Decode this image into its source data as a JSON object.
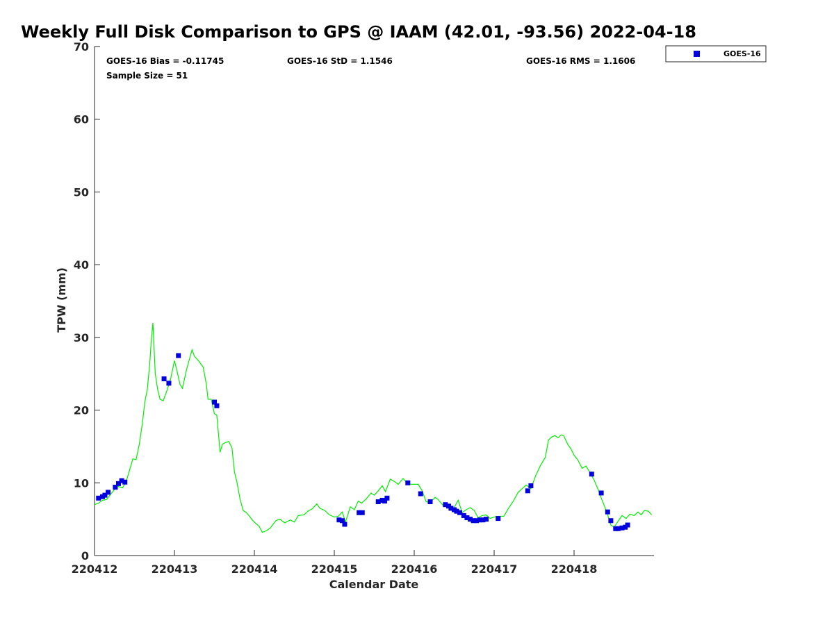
{
  "chart_data": {
    "type": "scatter",
    "title": "Weekly Full Disk Comparison to GPS @ IAAM (42.01, -93.56) 2022-04-18",
    "xlabel": "Calendar Date",
    "ylabel": "TPW (mm)",
    "xlim": [
      220412,
      220419
    ],
    "ylim": [
      0,
      70
    ],
    "yticks": [
      0,
      10,
      20,
      30,
      40,
      50,
      60,
      70
    ],
    "xticks": [
      {
        "value": 220412,
        "label": "220412"
      },
      {
        "value": 220413,
        "label": "220413"
      },
      {
        "value": 220414,
        "label": "220414"
      },
      {
        "value": 220415,
        "label": "220415"
      },
      {
        "value": 220416,
        "label": "220416"
      },
      {
        "value": 220417,
        "label": "220417"
      },
      {
        "value": 220418,
        "label": "220418"
      }
    ],
    "grid": false,
    "legend": {
      "placement": "outside-top-right",
      "entries": [
        "GOES-16"
      ]
    },
    "stats": {
      "bias": "GOES-16 Bias = -0.11745",
      "std": "GOES-16 StD = 1.1546",
      "rms": "GOES-16 RMS = 1.1606",
      "sample_size": "Sample Size = 51"
    },
    "colors": {
      "goes16": "#0000dd",
      "gps": "#00ee00"
    },
    "series": [
      {
        "name": "GOES-16",
        "marker": "square",
        "points": [
          [
            220412.05,
            7.9
          ],
          [
            220412.1,
            8.1
          ],
          [
            220412.13,
            8.3
          ],
          [
            220412.17,
            8.7
          ],
          [
            220412.26,
            9.4
          ],
          [
            220412.3,
            9.9
          ],
          [
            220412.34,
            10.3
          ],
          [
            220412.38,
            10.1
          ],
          [
            220412.87,
            24.3
          ],
          [
            220412.93,
            23.7
          ],
          [
            220413.05,
            27.5
          ],
          [
            220413.5,
            21.1
          ],
          [
            220413.53,
            20.6
          ],
          [
            220415.06,
            4.9
          ],
          [
            220415.1,
            4.8
          ],
          [
            220415.13,
            4.3
          ],
          [
            220415.31,
            5.9
          ],
          [
            220415.35,
            5.9
          ],
          [
            220415.55,
            7.4
          ],
          [
            220415.6,
            7.6
          ],
          [
            220415.63,
            7.5
          ],
          [
            220415.66,
            7.9
          ],
          [
            220415.92,
            10.0
          ],
          [
            220416.08,
            8.5
          ],
          [
            220416.2,
            7.4
          ],
          [
            220416.39,
            7.0
          ],
          [
            220416.43,
            6.8
          ],
          [
            220416.46,
            6.5
          ],
          [
            220416.5,
            6.3
          ],
          [
            220416.53,
            6.1
          ],
          [
            220416.57,
            5.9
          ],
          [
            220416.62,
            5.5
          ],
          [
            220416.66,
            5.2
          ],
          [
            220416.7,
            5.0
          ],
          [
            220416.74,
            4.8
          ],
          [
            220416.78,
            4.8
          ],
          [
            220416.82,
            4.9
          ],
          [
            220416.86,
            4.9
          ],
          [
            220416.9,
            5.0
          ],
          [
            220417.05,
            5.1
          ],
          [
            220417.42,
            8.9
          ],
          [
            220417.46,
            9.6
          ],
          [
            220418.22,
            11.2
          ],
          [
            220418.34,
            8.6
          ],
          [
            220418.42,
            6.0
          ],
          [
            220418.46,
            4.8
          ],
          [
            220418.52,
            3.7
          ],
          [
            220418.55,
            3.7
          ],
          [
            220418.6,
            3.8
          ],
          [
            220418.64,
            3.9
          ],
          [
            220418.67,
            4.2
          ]
        ]
      },
      {
        "marker": "line",
        "points": [
          [
            220412.0,
            7.0
          ],
          [
            220412.05,
            7.2
          ],
          [
            220412.1,
            7.6
          ],
          [
            220412.15,
            7.7
          ],
          [
            220412.2,
            8.4
          ],
          [
            220412.25,
            9.1
          ],
          [
            220412.3,
            9.5
          ],
          [
            220412.35,
            9.3
          ],
          [
            220412.4,
            10.3
          ],
          [
            220412.45,
            12.2
          ],
          [
            220412.48,
            13.3
          ],
          [
            220412.52,
            13.2
          ],
          [
            220412.56,
            15.3
          ],
          [
            220412.6,
            18.3
          ],
          [
            220412.63,
            21.2
          ],
          [
            220412.66,
            22.8
          ],
          [
            220412.69,
            26.3
          ],
          [
            220412.71,
            29.5
          ],
          [
            220412.73,
            32.0
          ],
          [
            220412.76,
            25.0
          ],
          [
            220412.79,
            22.8
          ],
          [
            220412.82,
            21.5
          ],
          [
            220412.86,
            21.3
          ],
          [
            220412.9,
            22.5
          ],
          [
            220412.95,
            24.2
          ],
          [
            220413.0,
            26.8
          ],
          [
            220413.03,
            25.5
          ],
          [
            220413.07,
            23.5
          ],
          [
            220413.1,
            23.0
          ],
          [
            220413.15,
            25.5
          ],
          [
            220413.2,
            27.5
          ],
          [
            220413.22,
            28.3
          ],
          [
            220413.25,
            27.4
          ],
          [
            220413.3,
            26.8
          ],
          [
            220413.36,
            25.9
          ],
          [
            220413.4,
            23.5
          ],
          [
            220413.42,
            21.5
          ],
          [
            220413.46,
            21.5
          ],
          [
            220413.5,
            19.5
          ],
          [
            220413.53,
            19.3
          ],
          [
            220413.56,
            15.6
          ],
          [
            220413.57,
            14.2
          ],
          [
            220413.6,
            15.3
          ],
          [
            220413.63,
            15.5
          ],
          [
            220413.68,
            15.7
          ],
          [
            220413.72,
            14.8
          ],
          [
            220413.75,
            11.5
          ],
          [
            220413.78,
            10.2
          ],
          [
            220413.82,
            7.8
          ],
          [
            220413.86,
            6.2
          ],
          [
            220413.9,
            5.9
          ],
          [
            220413.94,
            5.4
          ],
          [
            220413.98,
            4.8
          ],
          [
            220414.02,
            4.4
          ],
          [
            220414.06,
            4.0
          ],
          [
            220414.1,
            3.2
          ],
          [
            220414.15,
            3.4
          ],
          [
            220414.2,
            3.8
          ],
          [
            220414.27,
            4.8
          ],
          [
            220414.32,
            5.0
          ],
          [
            220414.38,
            4.5
          ],
          [
            220414.45,
            4.9
          ],
          [
            220414.5,
            4.6
          ],
          [
            220414.55,
            5.5
          ],
          [
            220414.62,
            5.6
          ],
          [
            220414.67,
            6.1
          ],
          [
            220414.72,
            6.4
          ],
          [
            220414.78,
            7.1
          ],
          [
            220414.82,
            6.5
          ],
          [
            220414.88,
            6.2
          ],
          [
            220414.94,
            5.6
          ],
          [
            220415.0,
            5.3
          ],
          [
            220415.05,
            5.4
          ],
          [
            220415.1,
            6.0
          ],
          [
            220415.14,
            4.6
          ],
          [
            220415.2,
            6.7
          ],
          [
            220415.25,
            6.3
          ],
          [
            220415.3,
            7.5
          ],
          [
            220415.34,
            7.2
          ],
          [
            220415.4,
            7.8
          ],
          [
            220415.46,
            8.6
          ],
          [
            220415.5,
            8.3
          ],
          [
            220415.55,
            8.9
          ],
          [
            220415.6,
            9.6
          ],
          [
            220415.64,
            8.8
          ],
          [
            220415.7,
            10.5
          ],
          [
            220415.75,
            10.2
          ],
          [
            220415.8,
            9.8
          ],
          [
            220415.86,
            10.6
          ],
          [
            220415.9,
            10.1
          ],
          [
            220415.96,
            9.8
          ],
          [
            220416.0,
            9.8
          ],
          [
            220416.05,
            9.8
          ],
          [
            220416.1,
            8.9
          ],
          [
            220416.15,
            7.4
          ],
          [
            220416.2,
            7.3
          ],
          [
            220416.26,
            8.0
          ],
          [
            220416.3,
            7.7
          ],
          [
            220416.36,
            6.9
          ],
          [
            220416.4,
            6.8
          ],
          [
            220416.46,
            6.5
          ],
          [
            220416.5,
            6.6
          ],
          [
            220416.55,
            7.6
          ],
          [
            220416.6,
            5.9
          ],
          [
            220416.65,
            6.3
          ],
          [
            220416.7,
            6.6
          ],
          [
            220416.75,
            6.2
          ],
          [
            220416.8,
            5.2
          ],
          [
            220416.85,
            5.5
          ],
          [
            220416.9,
            5.6
          ],
          [
            220416.95,
            5.1
          ],
          [
            220417.0,
            5.3
          ],
          [
            220417.06,
            5.4
          ],
          [
            220417.12,
            5.4
          ],
          [
            220417.18,
            6.5
          ],
          [
            220417.24,
            7.5
          ],
          [
            220417.3,
            8.7
          ],
          [
            220417.35,
            9.2
          ],
          [
            220417.4,
            9.7
          ],
          [
            220417.46,
            9.2
          ],
          [
            220417.52,
            11.0
          ],
          [
            220417.58,
            12.4
          ],
          [
            220417.64,
            13.5
          ],
          [
            220417.68,
            15.9
          ],
          [
            220417.72,
            16.3
          ],
          [
            220417.76,
            16.5
          ],
          [
            220417.8,
            16.2
          ],
          [
            220417.84,
            16.6
          ],
          [
            220417.87,
            16.5
          ],
          [
            220417.92,
            15.3
          ],
          [
            220417.96,
            14.7
          ],
          [
            220418.0,
            13.8
          ],
          [
            220418.05,
            13.1
          ],
          [
            220418.1,
            12.0
          ],
          [
            220418.15,
            12.3
          ],
          [
            220418.2,
            11.4
          ],
          [
            220418.25,
            10.4
          ],
          [
            220418.3,
            9.1
          ],
          [
            220418.34,
            7.9
          ],
          [
            220418.38,
            6.8
          ],
          [
            220418.42,
            5.6
          ],
          [
            220418.46,
            4.2
          ],
          [
            220418.5,
            3.9
          ],
          [
            220418.55,
            4.7
          ],
          [
            220418.6,
            5.5
          ],
          [
            220418.65,
            5.1
          ],
          [
            220418.7,
            5.7
          ],
          [
            220418.75,
            5.5
          ],
          [
            220418.8,
            6.0
          ],
          [
            220418.84,
            5.6
          ],
          [
            220418.88,
            6.2
          ],
          [
            220418.93,
            6.1
          ],
          [
            220418.97,
            5.6
          ]
        ]
      }
    ]
  }
}
